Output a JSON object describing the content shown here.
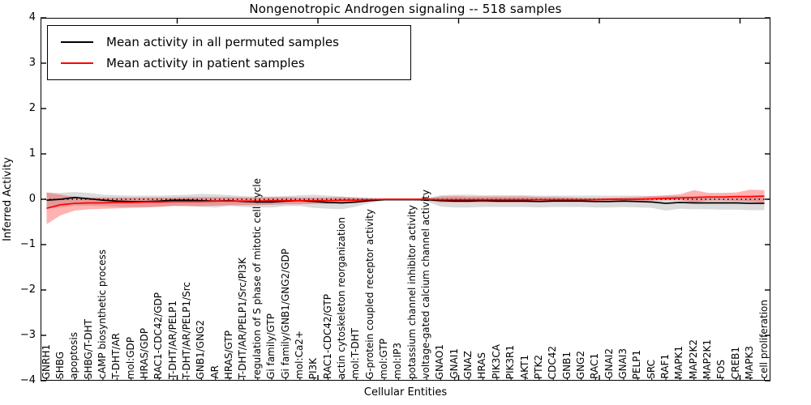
{
  "chart_data": {
    "type": "line",
    "title": "Nongenotropic Androgen signaling -- 518 samples",
    "xlabel": "Cellular Entities",
    "ylabel": "Inferred Activity",
    "ylim": [
      -4,
      4
    ],
    "yticks": [
      4,
      3,
      2,
      1,
      0,
      -1,
      -2,
      -3,
      -4
    ],
    "ytick_labels": [
      "4",
      "3",
      "2",
      "1",
      "0",
      "−1",
      "−2",
      "−3",
      "−4"
    ],
    "grid": false,
    "legend_position": "upper left",
    "zero_line": {
      "y": 0,
      "style": "dotted",
      "color": "#000000"
    },
    "categories": [
      "GNRH1",
      "SHBG",
      "apoptosis",
      "SHBG/T-DHT",
      "cAMP biosynthetic process",
      "T-DHT/AR",
      "mol:GDP",
      "HRAS/GDP",
      "RAC1-CDC42/GDP",
      "T-DHT/AR/PELP1",
      "T-DHT/AR/PELP1/Src",
      "GNB1/GNG2",
      "AR",
      "HRAS/GTP",
      "T-DHT/AR/PELP1/Src/PI3K",
      "regulation of S phase of mitotic cell cycle",
      "Gi family/GTP",
      "Gi family/GNB1/GNG2/GDP",
      "mol:Ca2+",
      "PI3K",
      "RAC1-CDC42/GTP",
      "actin cytoskeleton reorganization",
      "mol:T-DHT",
      "G-protein coupled receptor activity",
      "mol:GTP",
      "mol:IP3",
      "potassium channel inhibitor activity",
      "voltage-gated calcium channel activity",
      "GNAO1",
      "GNAI1",
      "GNAZ",
      "HRAS",
      "PIK3CA",
      "PIK3R1",
      "AKT1",
      "PTK2",
      "CDC42",
      "GNB1",
      "GNG2",
      "RAC1",
      "GNAI2",
      "GNAI3",
      "PELP1",
      "SRC",
      "RAF1",
      "MAPK1",
      "MAP2K2",
      "MAP2K1",
      "FOS",
      "CREB1",
      "MAPK3",
      "cell proliferation"
    ],
    "series": [
      {
        "name": "Mean activity in all permuted samples",
        "color": "#000000",
        "band_color": "#000000",
        "band_opacity": 0.14,
        "values": [
          -0.02,
          0.0,
          0.04,
          0.01,
          -0.02,
          -0.04,
          -0.05,
          -0.05,
          -0.04,
          -0.02,
          -0.02,
          -0.03,
          -0.04,
          -0.03,
          -0.05,
          -0.06,
          -0.06,
          -0.04,
          -0.03,
          -0.05,
          -0.07,
          -0.08,
          -0.06,
          -0.03,
          -0.01,
          -0.01,
          -0.01,
          -0.01,
          -0.03,
          -0.04,
          -0.04,
          -0.03,
          -0.04,
          -0.04,
          -0.04,
          -0.05,
          -0.04,
          -0.04,
          -0.04,
          -0.05,
          -0.05,
          -0.04,
          -0.05,
          -0.06,
          -0.09,
          -0.07,
          -0.08,
          -0.08,
          -0.08,
          -0.08,
          -0.09,
          -0.09
        ],
        "band_upper": [
          0.15,
          0.14,
          0.16,
          0.14,
          0.1,
          0.09,
          0.08,
          0.08,
          0.08,
          0.09,
          0.1,
          0.12,
          0.11,
          0.09,
          0.07,
          0.06,
          0.06,
          0.07,
          0.09,
          0.1,
          0.08,
          0.06,
          0.04,
          0.02,
          0.01,
          0.01,
          0.01,
          0.02,
          0.09,
          0.1,
          0.1,
          0.09,
          0.09,
          0.09,
          0.09,
          0.08,
          0.08,
          0.08,
          0.08,
          0.08,
          0.08,
          0.08,
          0.08,
          0.07,
          0.07,
          0.07,
          0.06,
          0.07,
          0.07,
          0.06,
          0.06,
          0.06
        ],
        "band_lower": [
          -0.2,
          -0.18,
          -0.14,
          -0.14,
          -0.15,
          -0.16,
          -0.17,
          -0.17,
          -0.16,
          -0.14,
          -0.15,
          -0.17,
          -0.18,
          -0.15,
          -0.17,
          -0.18,
          -0.18,
          -0.15,
          -0.15,
          -0.19,
          -0.21,
          -0.22,
          -0.16,
          -0.08,
          -0.03,
          -0.03,
          -0.03,
          -0.05,
          -0.16,
          -0.18,
          -0.18,
          -0.17,
          -0.17,
          -0.17,
          -0.17,
          -0.18,
          -0.17,
          -0.17,
          -0.17,
          -0.18,
          -0.18,
          -0.17,
          -0.18,
          -0.19,
          -0.25,
          -0.21,
          -0.22,
          -0.22,
          -0.23,
          -0.23,
          -0.24,
          -0.24
        ]
      },
      {
        "name": "Mean activity in patient samples",
        "color": "#ff0000",
        "band_color": "#ff0000",
        "band_opacity": 0.3,
        "values": [
          -0.2,
          -0.12,
          -0.09,
          -0.08,
          -0.08,
          -0.07,
          -0.07,
          -0.06,
          -0.06,
          -0.05,
          -0.05,
          -0.05,
          -0.04,
          -0.04,
          -0.04,
          -0.04,
          -0.03,
          -0.03,
          -0.03,
          -0.03,
          -0.03,
          -0.02,
          -0.02,
          -0.01,
          0.0,
          0.0,
          0.0,
          0.0,
          -0.01,
          -0.01,
          -0.01,
          -0.01,
          -0.01,
          -0.01,
          -0.01,
          -0.01,
          -0.01,
          -0.01,
          -0.01,
          -0.01,
          0.0,
          0.0,
          0.0,
          0.01,
          0.02,
          0.03,
          0.04,
          0.05,
          0.05,
          0.06,
          0.06,
          0.07
        ],
        "band_upper": [
          0.15,
          0.1,
          0.05,
          0.04,
          0.04,
          0.04,
          0.04,
          0.04,
          0.04,
          0.04,
          0.05,
          0.05,
          0.05,
          0.05,
          0.04,
          0.04,
          0.05,
          0.05,
          0.04,
          0.04,
          0.04,
          0.05,
          0.04,
          0.03,
          0.01,
          0.01,
          0.01,
          0.02,
          0.06,
          0.07,
          0.06,
          0.06,
          0.06,
          0.06,
          0.06,
          0.05,
          0.05,
          0.04,
          0.03,
          0.03,
          0.03,
          0.04,
          0.05,
          0.07,
          0.09,
          0.11,
          0.2,
          0.14,
          0.14,
          0.15,
          0.21,
          0.2
        ],
        "band_lower": [
          -0.55,
          -0.35,
          -0.25,
          -0.22,
          -0.21,
          -0.2,
          -0.19,
          -0.18,
          -0.17,
          -0.15,
          -0.15,
          -0.15,
          -0.14,
          -0.13,
          -0.13,
          -0.13,
          -0.12,
          -0.11,
          -0.11,
          -0.1,
          -0.1,
          -0.09,
          -0.08,
          -0.05,
          -0.02,
          -0.02,
          -0.02,
          -0.03,
          -0.07,
          -0.07,
          -0.07,
          -0.07,
          -0.07,
          -0.07,
          -0.07,
          -0.06,
          -0.05,
          -0.05,
          -0.04,
          -0.04,
          -0.04,
          -0.04,
          -0.04,
          -0.03,
          -0.02,
          -0.02,
          -0.07,
          -0.03,
          -0.03,
          -0.04,
          -0.06,
          -0.08
        ]
      }
    ]
  }
}
